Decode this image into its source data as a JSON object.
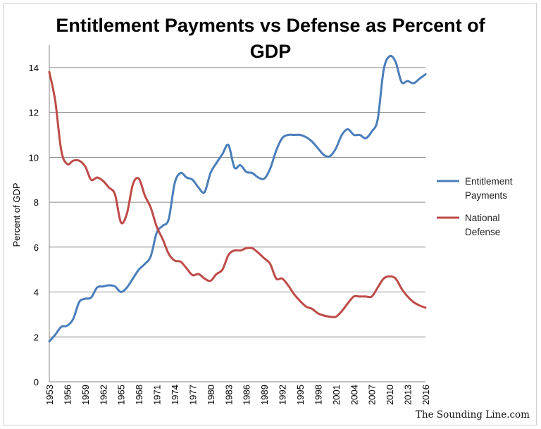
{
  "chart_data": {
    "type": "line",
    "title_lines": [
      "Entitlement Payments vs Defense as Percent of",
      "GDP"
    ],
    "xlabel": "",
    "ylabel": "Percent of GDP",
    "ylim": [
      0,
      15
    ],
    "yticks": [
      0,
      2,
      4,
      6,
      8,
      10,
      12,
      14
    ],
    "x_ticks": [
      "1953",
      "1956",
      "1959",
      "1962",
      "1965",
      "1968",
      "1971",
      "1974",
      "1977",
      "1980",
      "1983",
      "1986",
      "1989",
      "1992",
      "1995",
      "1998",
      "2001",
      "2004",
      "2007",
      "2010",
      "2013",
      "2016"
    ],
    "grid": true,
    "legend_position": "right",
    "x": [
      1953,
      1954,
      1955,
      1956,
      1957,
      1958,
      1959,
      1960,
      1961,
      1962,
      1963,
      1964,
      1965,
      1966,
      1967,
      1968,
      1969,
      1970,
      1971,
      1972,
      1973,
      1974,
      1975,
      1976,
      1977,
      1978,
      1979,
      1980,
      1981,
      1982,
      1983,
      1984,
      1985,
      1986,
      1987,
      1988,
      1989,
      1990,
      1991,
      1992,
      1993,
      1994,
      1995,
      1996,
      1997,
      1998,
      1999,
      2000,
      2001,
      2002,
      2003,
      2004,
      2005,
      2006,
      2007,
      2008,
      2009,
      2010,
      2011,
      2012,
      2013,
      2014,
      2015,
      2016
    ],
    "series": [
      {
        "name": "Entitlement Payments",
        "legend_lines": [
          "Entitlement",
          "Payments"
        ],
        "color": "#4a7ebb",
        "values": [
          1.8,
          2.1,
          2.45,
          2.5,
          2.8,
          3.55,
          3.7,
          3.75,
          4.2,
          4.25,
          4.3,
          4.25,
          4.0,
          4.2,
          4.6,
          5.0,
          5.25,
          5.6,
          6.65,
          6.95,
          7.25,
          8.85,
          9.3,
          9.1,
          9.0,
          8.65,
          8.45,
          9.3,
          9.75,
          10.15,
          10.55,
          9.55,
          9.65,
          9.35,
          9.3,
          9.1,
          9.05,
          9.5,
          10.3,
          10.85,
          11.0,
          11.0,
          11.0,
          10.9,
          10.7,
          10.4,
          10.1,
          10.05,
          10.4,
          11.0,
          11.25,
          11.0,
          11.0,
          10.85,
          11.15,
          11.7,
          13.9,
          14.5,
          14.25,
          13.35,
          13.4,
          13.3,
          13.5,
          13.7
        ]
      },
      {
        "name": "National Defense",
        "legend_lines": [
          "National",
          "Defense"
        ],
        "color": "#be4b48",
        "values": [
          13.8,
          12.5,
          10.3,
          9.7,
          9.85,
          9.85,
          9.6,
          9.0,
          9.1,
          8.95,
          8.65,
          8.35,
          7.1,
          7.5,
          8.8,
          9.05,
          8.3,
          7.75,
          6.9,
          6.35,
          5.7,
          5.4,
          5.35,
          5.05,
          4.75,
          4.8,
          4.6,
          4.5,
          4.8,
          5.0,
          5.65,
          5.85,
          5.85,
          5.95,
          5.95,
          5.75,
          5.5,
          5.25,
          4.6,
          4.6,
          4.3,
          3.9,
          3.6,
          3.35,
          3.25,
          3.05,
          2.95,
          2.9,
          2.9,
          3.15,
          3.5,
          3.8,
          3.8,
          3.8,
          3.8,
          4.2,
          4.6,
          4.7,
          4.6,
          4.15,
          3.8,
          3.55,
          3.4,
          3.3
        ]
      }
    ]
  },
  "watermark": "The Sounding Line.com"
}
